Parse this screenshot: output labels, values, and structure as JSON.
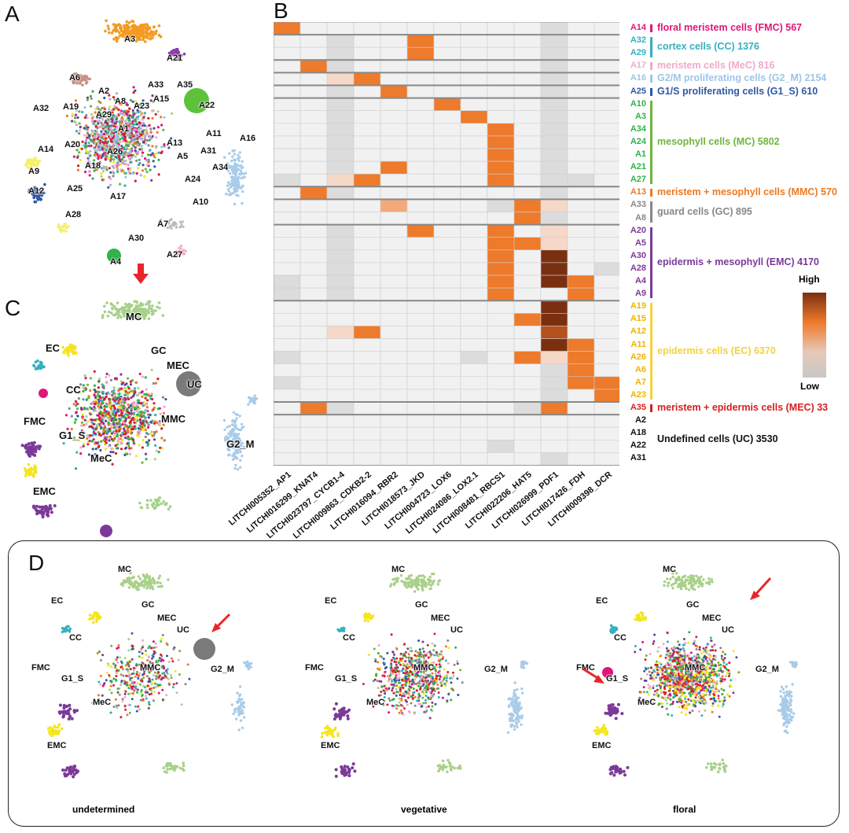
{
  "panels": {
    "a": "A",
    "b": "B",
    "c": "C",
    "d": "D"
  },
  "colors": {
    "heat_low": "#d0d0d0",
    "heat_mid": "#ee7a2c",
    "heat_high": "#7a3010",
    "empty": "#f1f1f1",
    "arrow": "#e8262a"
  },
  "panel_a_labels": [
    "A3",
    "A21",
    "A6",
    "A2",
    "A33",
    "A35",
    "A8",
    "A15",
    "A23",
    "A22",
    "A32",
    "A19",
    "A29",
    "A1",
    "A13",
    "A11",
    "A14",
    "A20",
    "A26",
    "A31",
    "A16",
    "A5",
    "A9",
    "A18",
    "A24",
    "A34",
    "A12",
    "A25",
    "A17",
    "A10",
    "A28",
    "A7",
    "A30",
    "A27",
    "A4"
  ],
  "cluster_names": [
    "MC",
    "EC",
    "GC",
    "MEC",
    "UC",
    "CC",
    "FMC",
    "MMC",
    "G2_M",
    "G1_S",
    "MeC",
    "EMC"
  ],
  "genes": [
    "LITCHI005352_AP1",
    "LITCHI016299_KNAT4",
    "LITCHI023797_CYCB1-4",
    "LITCHI009863_CDKB2-2",
    "LITCHI016094_RBR2",
    "LITCHI018573_JKD",
    "LITCHI004723_LOX6",
    "LITCHI024086_LOX2.1",
    "LITCHI008481_RBCS1",
    "LITCHI022206_HAT5",
    "LITCHI026999_PDF1",
    "LITCHI017426_FDH",
    "LITCHI009398_DCR"
  ],
  "rows": [
    {
      "label": "A14",
      "color": "#e0157a"
    },
    {
      "label": "A32",
      "color": "#34b0c0"
    },
    {
      "label": "A29",
      "color": "#34b0c0"
    },
    {
      "label": "A17",
      "color": "#f2a9c8"
    },
    {
      "label": "A16",
      "color": "#9fc4e8"
    },
    {
      "label": "A25",
      "color": "#2f58a8"
    },
    {
      "label": "A10",
      "color": "#2fb34a"
    },
    {
      "label": "A3",
      "color": "#2fb34a"
    },
    {
      "label": "A34",
      "color": "#2fb34a"
    },
    {
      "label": "A24",
      "color": "#2fb34a"
    },
    {
      "label": "A1",
      "color": "#2fb34a"
    },
    {
      "label": "A21",
      "color": "#2fb34a"
    },
    {
      "label": "A27",
      "color": "#2fb34a"
    },
    {
      "label": "A13",
      "color": "#ec7a22"
    },
    {
      "label": "A33",
      "color": "#888888"
    },
    {
      "label": "A8",
      "color": "#888888"
    },
    {
      "label": "A20",
      "color": "#7b3a98"
    },
    {
      "label": "A5",
      "color": "#7b3a98"
    },
    {
      "label": "A30",
      "color": "#7b3a98"
    },
    {
      "label": "A28",
      "color": "#7b3a98"
    },
    {
      "label": "A4",
      "color": "#7b3a98"
    },
    {
      "label": "A9",
      "color": "#7b3a98"
    },
    {
      "label": "A19",
      "color": "#f0b400"
    },
    {
      "label": "A15",
      "color": "#f0b400"
    },
    {
      "label": "A12",
      "color": "#f0b400"
    },
    {
      "label": "A11",
      "color": "#f0b400"
    },
    {
      "label": "A26",
      "color": "#f0b400"
    },
    {
      "label": "A6",
      "color": "#f0b400"
    },
    {
      "label": "A7",
      "color": "#f0b400"
    },
    {
      "label": "A23",
      "color": "#f0b400"
    },
    {
      "label": "A35",
      "color": "#d42020"
    },
    {
      "label": "A2",
      "color": "#111111"
    },
    {
      "label": "A18",
      "color": "#111111"
    },
    {
      "label": "A22",
      "color": "#111111"
    },
    {
      "label": "A31",
      "color": "#111111"
    }
  ],
  "groups": [
    {
      "name": "floral meristem cells (FMC) 567",
      "color": "#e0157a",
      "start": 0,
      "end": 0
    },
    {
      "name": "cortex cells (CC) 1376",
      "color": "#34b0c0",
      "start": 1,
      "end": 2
    },
    {
      "name": "meristem cells (MeC) 816",
      "color": "#f2a9c8",
      "start": 3,
      "end": 3
    },
    {
      "name": "G2/M proliferating cells (G2_M) 2154",
      "color": "#9fc4e8",
      "start": 4,
      "end": 4
    },
    {
      "name": "G1/S proliferating cells (G1_S) 610",
      "color": "#2f58a8",
      "start": 5,
      "end": 5
    },
    {
      "name": "mesophyll cells (MC) 5802",
      "color": "#6fb63c",
      "start": 6,
      "end": 12
    },
    {
      "name": "meristem + mesophyll cells (MMC) 570",
      "color": "#ec7a22",
      "start": 13,
      "end": 13
    },
    {
      "name": "guard cells (GC) 895",
      "color": "#888888",
      "start": 14,
      "end": 15
    },
    {
      "name": "epidermis + mesophyll (EMC) 4170",
      "color": "#7b3a98",
      "start": 16,
      "end": 21
    },
    {
      "name": "epidermis cells (EC) 6370",
      "color": "#f5d23a",
      "start": 22,
      "end": 29
    },
    {
      "name": "meristem + epidermis cells  (MEC)  33",
      "color": "#d42020",
      "start": 30,
      "end": 30
    },
    {
      "name": "Undefined cells (UC) 3530",
      "color": "#111111",
      "start": 31,
      "end": 34
    }
  ],
  "chart_data": {
    "type": "heatmap",
    "title": "",
    "scale": "0 = low, 3 = high",
    "x": [
      "LITCHI005352_AP1",
      "LITCHI016299_KNAT4",
      "LITCHI023797_CYCB1-4",
      "LITCHI009863_CDKB2-2",
      "LITCHI016094_RBR2",
      "LITCHI018573_JKD",
      "LITCHI004723_LOX6",
      "LITCHI024086_LOX2.1",
      "LITCHI008481_RBCS1",
      "LITCHI022206_HAT5",
      "LITCHI026999_PDF1",
      "LITCHI017426_FDH",
      "LITCHI009398_DCR"
    ],
    "y": [
      "A14",
      "A32",
      "A29",
      "A17",
      "A16",
      "A25",
      "A10",
      "A3",
      "A34",
      "A24",
      "A1",
      "A21",
      "A27",
      "A13",
      "A33",
      "A8",
      "A20",
      "A5",
      "A30",
      "A28",
      "A4",
      "A9",
      "A19",
      "A15",
      "A12",
      "A11",
      "A26",
      "A6",
      "A7",
      "A23",
      "A35",
      "A2",
      "A18",
      "A22",
      "A31"
    ],
    "values": [
      [
        2,
        0,
        0,
        0,
        0,
        0,
        0,
        0,
        0,
        0,
        0.3,
        0,
        0
      ],
      [
        0,
        0,
        0.1,
        0,
        0,
        2,
        0,
        0,
        0,
        0,
        0.3,
        0,
        0
      ],
      [
        0,
        0,
        0.1,
        0,
        0,
        2,
        0,
        0,
        0,
        0,
        0.2,
        0,
        0
      ],
      [
        0,
        2,
        0.1,
        0,
        0,
        0,
        0,
        0,
        0,
        0,
        0.1,
        0,
        0
      ],
      [
        0,
        0,
        1.2,
        2,
        0,
        0,
        0,
        0,
        0,
        0,
        0.1,
        0,
        0
      ],
      [
        0,
        0,
        0.1,
        0,
        2,
        0,
        0,
        0,
        0,
        0,
        0.2,
        0,
        0
      ],
      [
        0,
        0,
        0.1,
        0,
        0,
        0,
        2,
        0,
        0,
        0,
        0.1,
        0,
        0
      ],
      [
        0,
        0,
        0.1,
        0,
        0,
        0,
        0,
        2,
        0,
        0,
        0.1,
        0,
        0
      ],
      [
        0,
        0,
        0.1,
        0,
        0,
        0,
        0,
        0,
        2.3,
        0,
        0.1,
        0,
        0
      ],
      [
        0,
        0,
        0.1,
        0,
        0,
        0,
        0,
        0,
        2.3,
        0,
        0.1,
        0,
        0
      ],
      [
        0,
        0,
        0.1,
        0,
        0,
        0,
        0,
        0,
        2.3,
        0,
        0.1,
        0,
        0
      ],
      [
        0,
        0,
        0.1,
        0,
        2,
        0,
        0,
        0,
        2.3,
        0,
        0.2,
        0,
        0
      ],
      [
        0.2,
        0,
        1.2,
        2,
        0,
        0,
        0,
        0,
        2.3,
        0,
        0.1,
        0.2,
        0
      ],
      [
        0,
        2,
        0.1,
        0,
        0,
        0,
        0,
        0,
        0,
        0,
        0.1,
        0,
        0
      ],
      [
        0,
        0,
        0,
        0,
        1.6,
        0,
        0,
        0,
        0.1,
        2,
        1.2,
        0,
        0
      ],
      [
        0,
        0,
        0,
        0,
        0,
        0,
        0,
        0,
        0,
        2,
        0.1,
        0,
        0
      ],
      [
        0,
        0,
        0.1,
        0,
        0,
        2,
        0,
        0,
        2.3,
        0,
        1.2,
        0,
        0
      ],
      [
        0,
        0,
        0.1,
        0,
        0,
        0,
        0,
        0,
        2.3,
        2,
        1.2,
        0,
        0
      ],
      [
        0,
        0,
        0.1,
        0,
        0,
        0,
        0,
        0,
        2.3,
        0,
        3,
        0,
        0
      ],
      [
        0,
        0,
        0.1,
        0,
        0,
        0,
        0,
        0,
        2.3,
        0,
        3,
        0,
        0.2
      ],
      [
        0.2,
        0,
        0.1,
        0,
        0,
        0,
        0,
        0,
        2.3,
        0,
        3,
        2,
        0
      ],
      [
        0.2,
        0,
        0.1,
        0,
        0,
        0,
        0,
        0,
        2.3,
        0,
        0,
        2,
        0
      ],
      [
        0,
        0,
        0,
        0,
        0,
        0,
        0,
        0,
        0,
        0,
        3,
        0,
        0
      ],
      [
        0,
        0,
        0,
        0,
        0,
        0,
        0,
        0,
        0,
        2,
        3,
        0,
        0
      ],
      [
        0,
        0,
        1.2,
        2,
        0,
        0,
        0,
        0,
        0,
        0,
        2.5,
        0,
        0
      ],
      [
        0,
        0,
        0,
        0,
        0,
        0,
        0,
        0,
        0,
        0,
        3,
        2,
        0
      ],
      [
        0.2,
        0,
        0,
        0,
        0,
        0,
        0,
        0.1,
        0,
        2,
        1.2,
        2,
        0
      ],
      [
        0,
        0,
        0,
        0,
        0,
        0,
        0,
        0,
        0,
        0,
        0.1,
        2,
        0
      ],
      [
        0.2,
        0,
        0,
        0,
        0,
        0,
        0,
        0,
        0,
        0,
        0.2,
        2,
        2
      ],
      [
        0,
        0,
        0,
        0,
        0,
        0,
        0,
        0,
        0,
        0,
        0.2,
        0,
        2
      ],
      [
        0,
        2,
        0.1,
        0,
        0,
        0,
        0,
        0,
        0,
        0.1,
        2,
        0,
        0
      ],
      [
        0,
        0,
        0,
        0,
        0,
        0,
        0,
        0,
        0,
        0,
        0,
        0,
        0
      ],
      [
        0,
        0,
        0,
        0,
        0,
        0,
        0,
        0,
        0,
        0,
        0,
        0,
        0
      ],
      [
        0,
        0,
        0,
        0,
        0,
        0,
        0,
        0,
        0.4,
        0,
        0,
        0,
        0
      ],
      [
        0,
        0,
        0,
        0,
        0,
        0,
        0,
        0,
        0,
        0,
        0.1,
        0,
        0
      ]
    ],
    "separators_after_rows": [
      0,
      2,
      3,
      4,
      5,
      12,
      13,
      15,
      21,
      29,
      30
    ]
  },
  "legend": {
    "high": "High",
    "low": "Low"
  },
  "conditions": [
    "undetermined",
    "vegetative",
    "floral"
  ]
}
